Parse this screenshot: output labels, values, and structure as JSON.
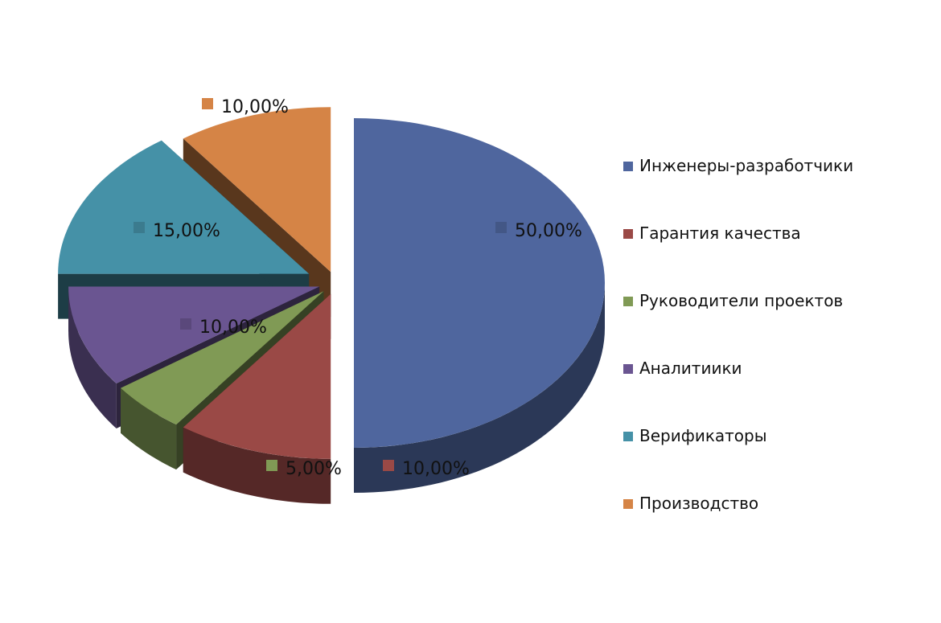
{
  "chart_data": {
    "type": "pie",
    "title": "",
    "style": "3d-exploded",
    "legend_position": "right",
    "slices": [
      {
        "label": "Инженеры-разработчики",
        "value": 50,
        "value_label": "50,00%",
        "color": "#4F669E"
      },
      {
        "label": "Гарантия качества",
        "value": 10,
        "value_label": "10,00%",
        "color": "#9A4946"
      },
      {
        "label": "Руководители проектов",
        "value": 5,
        "value_label": "5,00%",
        "color": "#809A55"
      },
      {
        "label": "Аналитиики",
        "value": 10,
        "value_label": "10,00%",
        "color": "#6A5591"
      },
      {
        "label": "Верификаторы",
        "value": 15,
        "value_label": "15,00%",
        "color": "#4591A7"
      },
      {
        "label": "Производство",
        "value": 10,
        "value_label": "10,00%",
        "color": "#D58446"
      }
    ]
  }
}
